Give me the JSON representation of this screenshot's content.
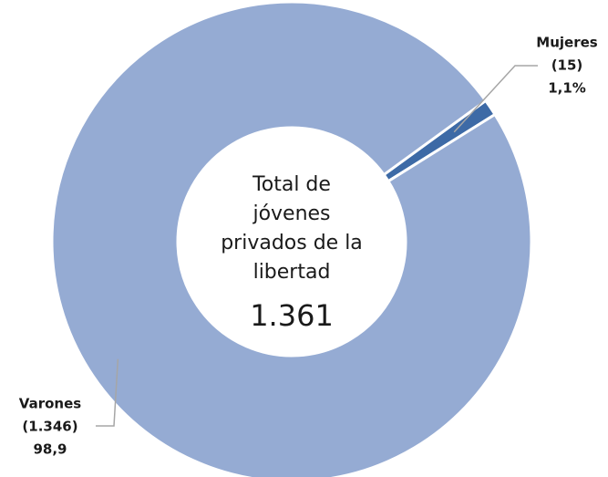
{
  "chart_data": {
    "type": "donut",
    "categories": [
      "Mujeres",
      "Varones"
    ],
    "values": [
      15,
      1346
    ],
    "value_labels": [
      "(15)",
      "(1.346)"
    ],
    "percentages": [
      1.1,
      98.9
    ],
    "percentage_labels": [
      "1,1%",
      "98,9"
    ],
    "colors": [
      "#3d6aa6",
      "#95abd3"
    ],
    "center_label": [
      "Total de",
      "jóvenes",
      "privados de la",
      "libertad"
    ],
    "total": {
      "value": 1361,
      "label": "1.361"
    }
  }
}
